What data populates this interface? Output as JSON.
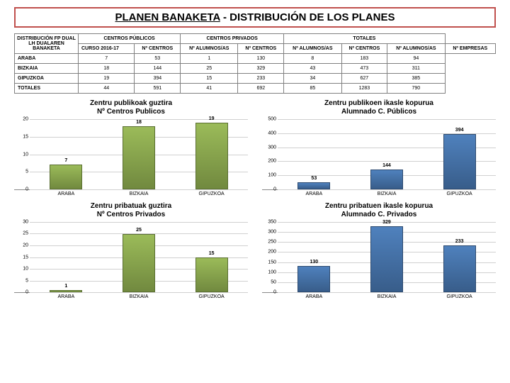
{
  "title": {
    "part1": "PLANEN BANAKETA",
    "part2": " - DISTRIBUCIÓN DE LOS PLANES"
  },
  "table": {
    "header_left": [
      "DISTRIBUCIÓN FP DUAL",
      "LH DUALAREN BANAKETA"
    ],
    "period": "CURSO 2016-17",
    "groups": [
      "CENTROS PÚBLICOS",
      "CENTROS PRIVADOS",
      "TOTALES"
    ],
    "subcols": [
      "Nº CENTROS",
      "Nº ALUMNOS/AS",
      "Nº CENTROS",
      "Nº ALUMNOS/AS",
      "Nº CENTROS",
      "Nº ALUMNOS/AS",
      "Nº EMPRESAS"
    ],
    "rows": [
      {
        "label": "ARABA",
        "vals": [
          "7",
          "53",
          "1",
          "130",
          "8",
          "183",
          "94"
        ]
      },
      {
        "label": "BIZKAIA",
        "vals": [
          "18",
          "144",
          "25",
          "329",
          "43",
          "473",
          "311"
        ]
      },
      {
        "label": "GIPUZKOA",
        "vals": [
          "19",
          "394",
          "15",
          "233",
          "34",
          "627",
          "385"
        ]
      },
      {
        "label": "TOTALES",
        "vals": [
          "44",
          "591",
          "41",
          "692",
          "85",
          "1283",
          "790"
        ]
      }
    ]
  },
  "charts": [
    {
      "title": [
        "Zentru publikoak guztira",
        "Nº Centros Publicos"
      ],
      "color": "g",
      "ylim": 20,
      "ystep": 5,
      "cats": [
        "ARABA",
        "BIZKAIA",
        "GIPUZKOA"
      ],
      "vals": [
        7,
        18,
        19
      ]
    },
    {
      "title": [
        "Zentru publikoen ikasle kopurua",
        "Alumnado C. Públicos"
      ],
      "color": "b",
      "ylim": 500,
      "ystep": 100,
      "cats": [
        "ARABA",
        "BIZKAIA",
        "GIPUZKOA"
      ],
      "vals": [
        53,
        144,
        394
      ]
    },
    {
      "title": [
        "Zentru pribatuak guztira",
        "Nº Centros Privados"
      ],
      "color": "g",
      "ylim": 30,
      "ystep": 5,
      "cats": [
        "ARABA",
        "BIZKAIA",
        "GIPUZKOA"
      ],
      "vals": [
        1,
        25,
        15
      ]
    },
    {
      "title": [
        "Zentru pribatuen ikasle kopurua",
        "Alumnado C. Privados"
      ],
      "color": "b",
      "ylim": 350,
      "ystep": 50,
      "cats": [
        "ARABA",
        "BIZKAIA",
        "GIPUZKOA"
      ],
      "vals": [
        130,
        329,
        233
      ]
    }
  ]
}
